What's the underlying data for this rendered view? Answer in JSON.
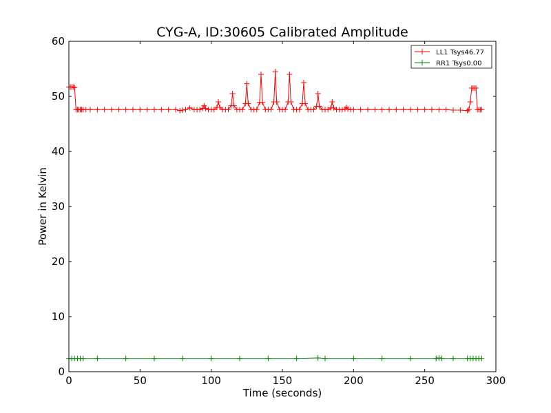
{
  "chart_data": {
    "type": "line",
    "title": "CYG-A, ID:30605 Calibrated Amplitude",
    "xlabel": "Time (seconds)",
    "ylabel": "Power in Kelvin",
    "xlim": [
      0,
      300
    ],
    "ylim": [
      0,
      60
    ],
    "xticks": [
      "0",
      "50",
      "100",
      "150",
      "200",
      "250",
      "300"
    ],
    "yticks": [
      "0",
      "10",
      "20",
      "30",
      "40",
      "50",
      "60"
    ],
    "grid": false,
    "legend_position": "top-right",
    "marker": "plus",
    "series": [
      {
        "name": "LL1 Tsys46.77",
        "color": "#ff0000",
        "x": [
          0,
          1,
          2,
          3,
          4,
          5,
          6,
          7,
          8,
          9,
          10,
          12,
          15,
          20,
          25,
          30,
          35,
          40,
          45,
          50,
          55,
          60,
          65,
          70,
          75,
          78,
          80,
          82,
          85,
          88,
          90,
          92,
          94,
          95,
          96,
          98,
          100,
          102,
          104,
          105,
          106,
          108,
          110,
          112,
          114,
          115,
          116,
          118,
          120,
          122,
          124,
          125,
          126,
          128,
          130,
          132,
          134,
          135,
          136,
          138,
          140,
          142,
          144,
          145,
          146,
          148,
          150,
          152,
          154,
          155,
          156,
          158,
          160,
          162,
          164,
          165,
          166,
          168,
          170,
          172,
          174,
          175,
          176,
          178,
          180,
          182,
          184,
          185,
          186,
          188,
          190,
          192,
          194,
          195,
          196,
          198,
          200,
          205,
          210,
          215,
          220,
          225,
          230,
          235,
          240,
          245,
          250,
          255,
          260,
          265,
          270,
          275,
          280,
          281,
          282,
          283,
          284,
          285,
          286,
          287,
          288,
          289,
          290
        ],
        "y": [
          51.7,
          51.7,
          51.7,
          51.7,
          51.6,
          47.6,
          47.6,
          47.6,
          47.6,
          47.6,
          47.6,
          47.6,
          47.6,
          47.6,
          47.6,
          47.6,
          47.6,
          47.6,
          47.6,
          47.6,
          47.6,
          47.6,
          47.6,
          47.6,
          47.6,
          47.4,
          47.5,
          47.6,
          47.9,
          47.6,
          47.6,
          47.6,
          47.8,
          48.3,
          47.8,
          47.6,
          47.6,
          47.6,
          48.0,
          49.0,
          48.0,
          47.6,
          47.6,
          47.6,
          48.3,
          50.5,
          48.3,
          47.6,
          47.6,
          47.6,
          48.7,
          52.3,
          48.7,
          47.6,
          47.6,
          47.6,
          48.9,
          54.0,
          48.9,
          47.6,
          47.6,
          47.6,
          49.0,
          54.5,
          49.0,
          47.6,
          47.6,
          47.6,
          49.0,
          54.0,
          49.0,
          47.6,
          47.6,
          47.6,
          48.7,
          52.5,
          48.7,
          47.6,
          47.6,
          47.6,
          48.2,
          50.5,
          48.2,
          47.6,
          47.6,
          47.6,
          47.9,
          49.0,
          47.9,
          47.6,
          47.6,
          47.6,
          47.7,
          48.0,
          47.7,
          47.6,
          47.6,
          47.6,
          47.6,
          47.6,
          47.6,
          47.6,
          47.6,
          47.6,
          47.6,
          47.6,
          47.6,
          47.6,
          47.6,
          47.6,
          47.5,
          47.5,
          47.4,
          47.6,
          49.0,
          51.5,
          51.5,
          51.5,
          51.5,
          47.6,
          47.6,
          47.6,
          47.6
        ]
      },
      {
        "name": "RR1 Tsys0.00",
        "color": "#008000",
        "x": [
          0,
          2,
          4,
          6,
          8,
          10,
          20,
          40,
          60,
          80,
          100,
          120,
          140,
          160,
          175,
          180,
          200,
          220,
          240,
          258,
          260,
          262,
          270,
          280,
          282,
          284,
          286,
          288,
          290
        ],
        "y": [
          2.4,
          2.4,
          2.4,
          2.4,
          2.4,
          2.4,
          2.4,
          2.4,
          2.4,
          2.4,
          2.4,
          2.4,
          2.4,
          2.4,
          2.5,
          2.4,
          2.4,
          2.4,
          2.4,
          2.4,
          2.5,
          2.4,
          2.4,
          2.4,
          2.4,
          2.4,
          2.4,
          2.4,
          2.4
        ]
      }
    ]
  }
}
